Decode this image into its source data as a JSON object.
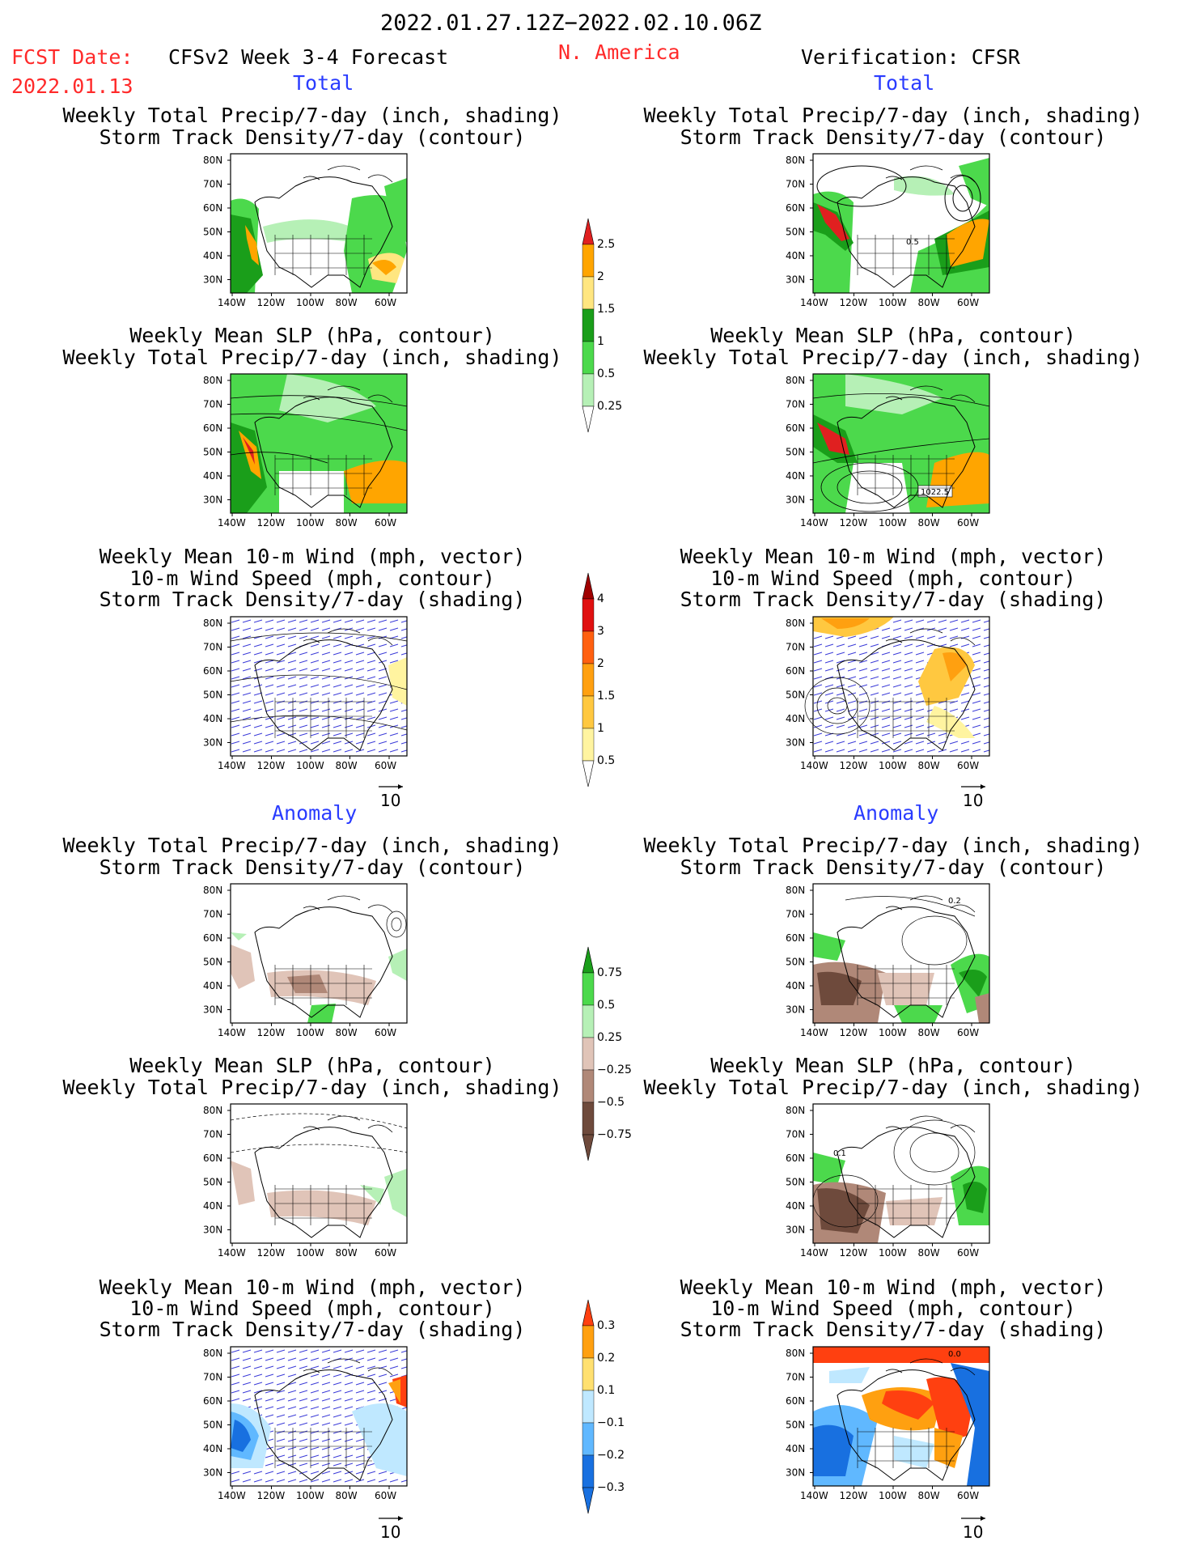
{
  "header": {
    "date_range": "2022.01.27.12Z−2022.02.10.06Z",
    "fcst_label": "FCST Date:",
    "fcst_date": "2022.01.13",
    "model": "CFSv2 Week 3-4 Forecast",
    "region": "N. America",
    "verification": "Verification: CFSR"
  },
  "sections": {
    "total": "Total",
    "anomaly": "Anomaly"
  },
  "panel_titles": {
    "precip_storm": [
      "Weekly Total Precip/7-day (inch, shading)",
      "Storm Track Density/7-day (contour)"
    ],
    "slp_precip": [
      "Weekly Mean SLP (hPa, contour)",
      "Weekly Total Precip/7-day (inch, shading)"
    ],
    "wind_storm": [
      "Weekly Mean 10-m Wind (mph, vector)",
      "10-m Wind Speed (mph, contour)",
      "Storm Track Density/7-day (shading)"
    ]
  },
  "axes": {
    "lat_labels": [
      "80N",
      "70N",
      "60N",
      "50N",
      "40N",
      "30N"
    ],
    "lon_labels": [
      "140W",
      "120W",
      "100W",
      "80W",
      "60W"
    ]
  },
  "vector_scale": "10",
  "map_labels": {
    "r1": "0.5",
    "r2": "1022.5",
    "r4": "0.2",
    "r5": "0.1",
    "r6": "0.0"
  },
  "colorbars": {
    "precip_total": {
      "labels": [
        "2.5",
        "2",
        "1.5",
        "1",
        "0.5",
        "0.25"
      ],
      "colors": [
        "#e02020",
        "#ffa500",
        "#ffe680",
        "#1a9e1a",
        "#4cd94c",
        "#b6f0b6"
      ]
    },
    "storm_total": {
      "labels": [
        "4",
        "3",
        "2",
        "1.5",
        "1",
        "0.5"
      ],
      "colors": [
        "#a00000",
        "#e01010",
        "#ff6010",
        "#ffa010",
        "#ffc840",
        "#fff4a0"
      ]
    },
    "precip_anom": {
      "labels": [
        "0.75",
        "0.5",
        "0.25",
        "−0.25",
        "−0.5",
        "−0.75"
      ],
      "colors": [
        "#1a9e1a",
        "#4cd94c",
        "#b6f0b6",
        "#e0c4b8",
        "#b08878",
        "#6e4a3c"
      ]
    },
    "storm_anom": {
      "labels": [
        "0.3",
        "0.2",
        "0.1",
        "−0.1",
        "−0.2",
        "−0.3"
      ],
      "colors": [
        "#ff4010",
        "#ffa010",
        "#ffe070",
        "#bfe8ff",
        "#60b8ff",
        "#1870e0"
      ]
    }
  },
  "colors": {
    "header_red": "#ff2a2a",
    "section_blue": "#2a3cff"
  }
}
